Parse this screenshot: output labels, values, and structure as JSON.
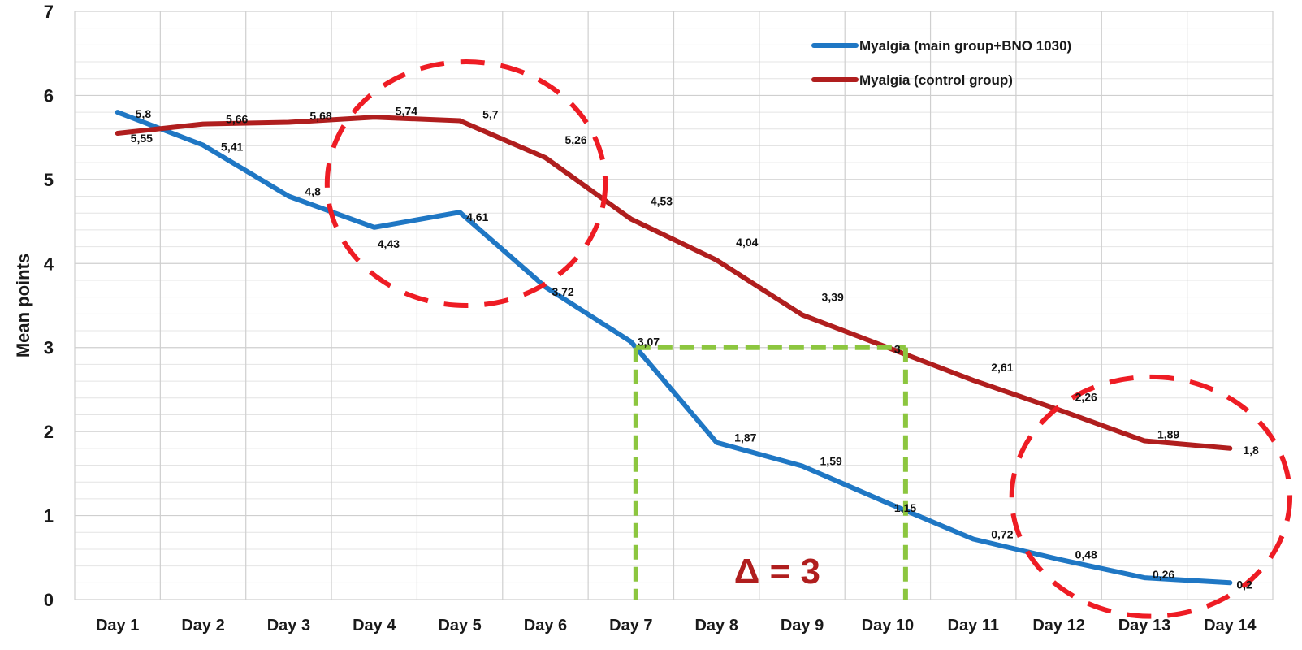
{
  "chart_data": {
    "type": "line",
    "title": "",
    "xlabel": "",
    "ylabel": "Mean points",
    "categories": [
      "Day 1",
      "Day 2",
      "Day 3",
      "Day 4",
      "Day 5",
      "Day 6",
      "Day 7",
      "Day 8",
      "Day 9",
      "Day 10",
      "Day 11",
      "Day 12",
      "Day 13",
      "Day 14"
    ],
    "ylim": [
      0,
      7
    ],
    "yticks": [
      0,
      1,
      2,
      3,
      4,
      5,
      6,
      7
    ],
    "grid": true,
    "legend_position": "top-right",
    "series": [
      {
        "name": "Myalgia (main group+BNO 1030)",
        "color": "#1f77c4",
        "values": [
          5.8,
          5.41,
          4.8,
          4.43,
          4.61,
          3.72,
          3.07,
          1.87,
          1.59,
          1.15,
          0.72,
          0.48,
          0.26,
          0.2
        ],
        "labels": [
          "5,8",
          "5,41",
          "4,8",
          "4,43",
          "4,61",
          "3,72",
          "3,07",
          "1,87",
          "1,59",
          "1,15",
          "0,72",
          "0,48",
          "0,26",
          "0,2"
        ]
      },
      {
        "name": "Myalgia (control group)",
        "color": "#b01e1e",
        "values": [
          5.55,
          5.66,
          5.68,
          5.74,
          5.7,
          5.26,
          4.53,
          4.04,
          3.39,
          3.0,
          2.61,
          2.26,
          1.89,
          1.8
        ],
        "labels": [
          "5,55",
          "5,66",
          "5,68",
          "5,74",
          "5,7",
          "5,26",
          "4,53",
          "4,04",
          "3,39",
          "3",
          "2,61",
          "2,26",
          "1,89",
          "1,8"
        ]
      }
    ],
    "annotations": {
      "delta_text": "Δ = 3",
      "delta_color": "#b01e1e",
      "comparison_color": "#8cc63f",
      "comparison_from": {
        "category": "Day 7",
        "value": 3
      },
      "comparison_to": {
        "category": "Day 10",
        "value": 3
      },
      "highlight_color": "#ee1c24",
      "highlight_regions": [
        {
          "categories": [
            "Day 4",
            "Day 6"
          ],
          "value_range": [
            3.5,
            6.4
          ]
        },
        {
          "categories": [
            "Day 12",
            "Day 14"
          ],
          "value_range": [
            -0.2,
            2.65
          ]
        }
      ]
    }
  }
}
